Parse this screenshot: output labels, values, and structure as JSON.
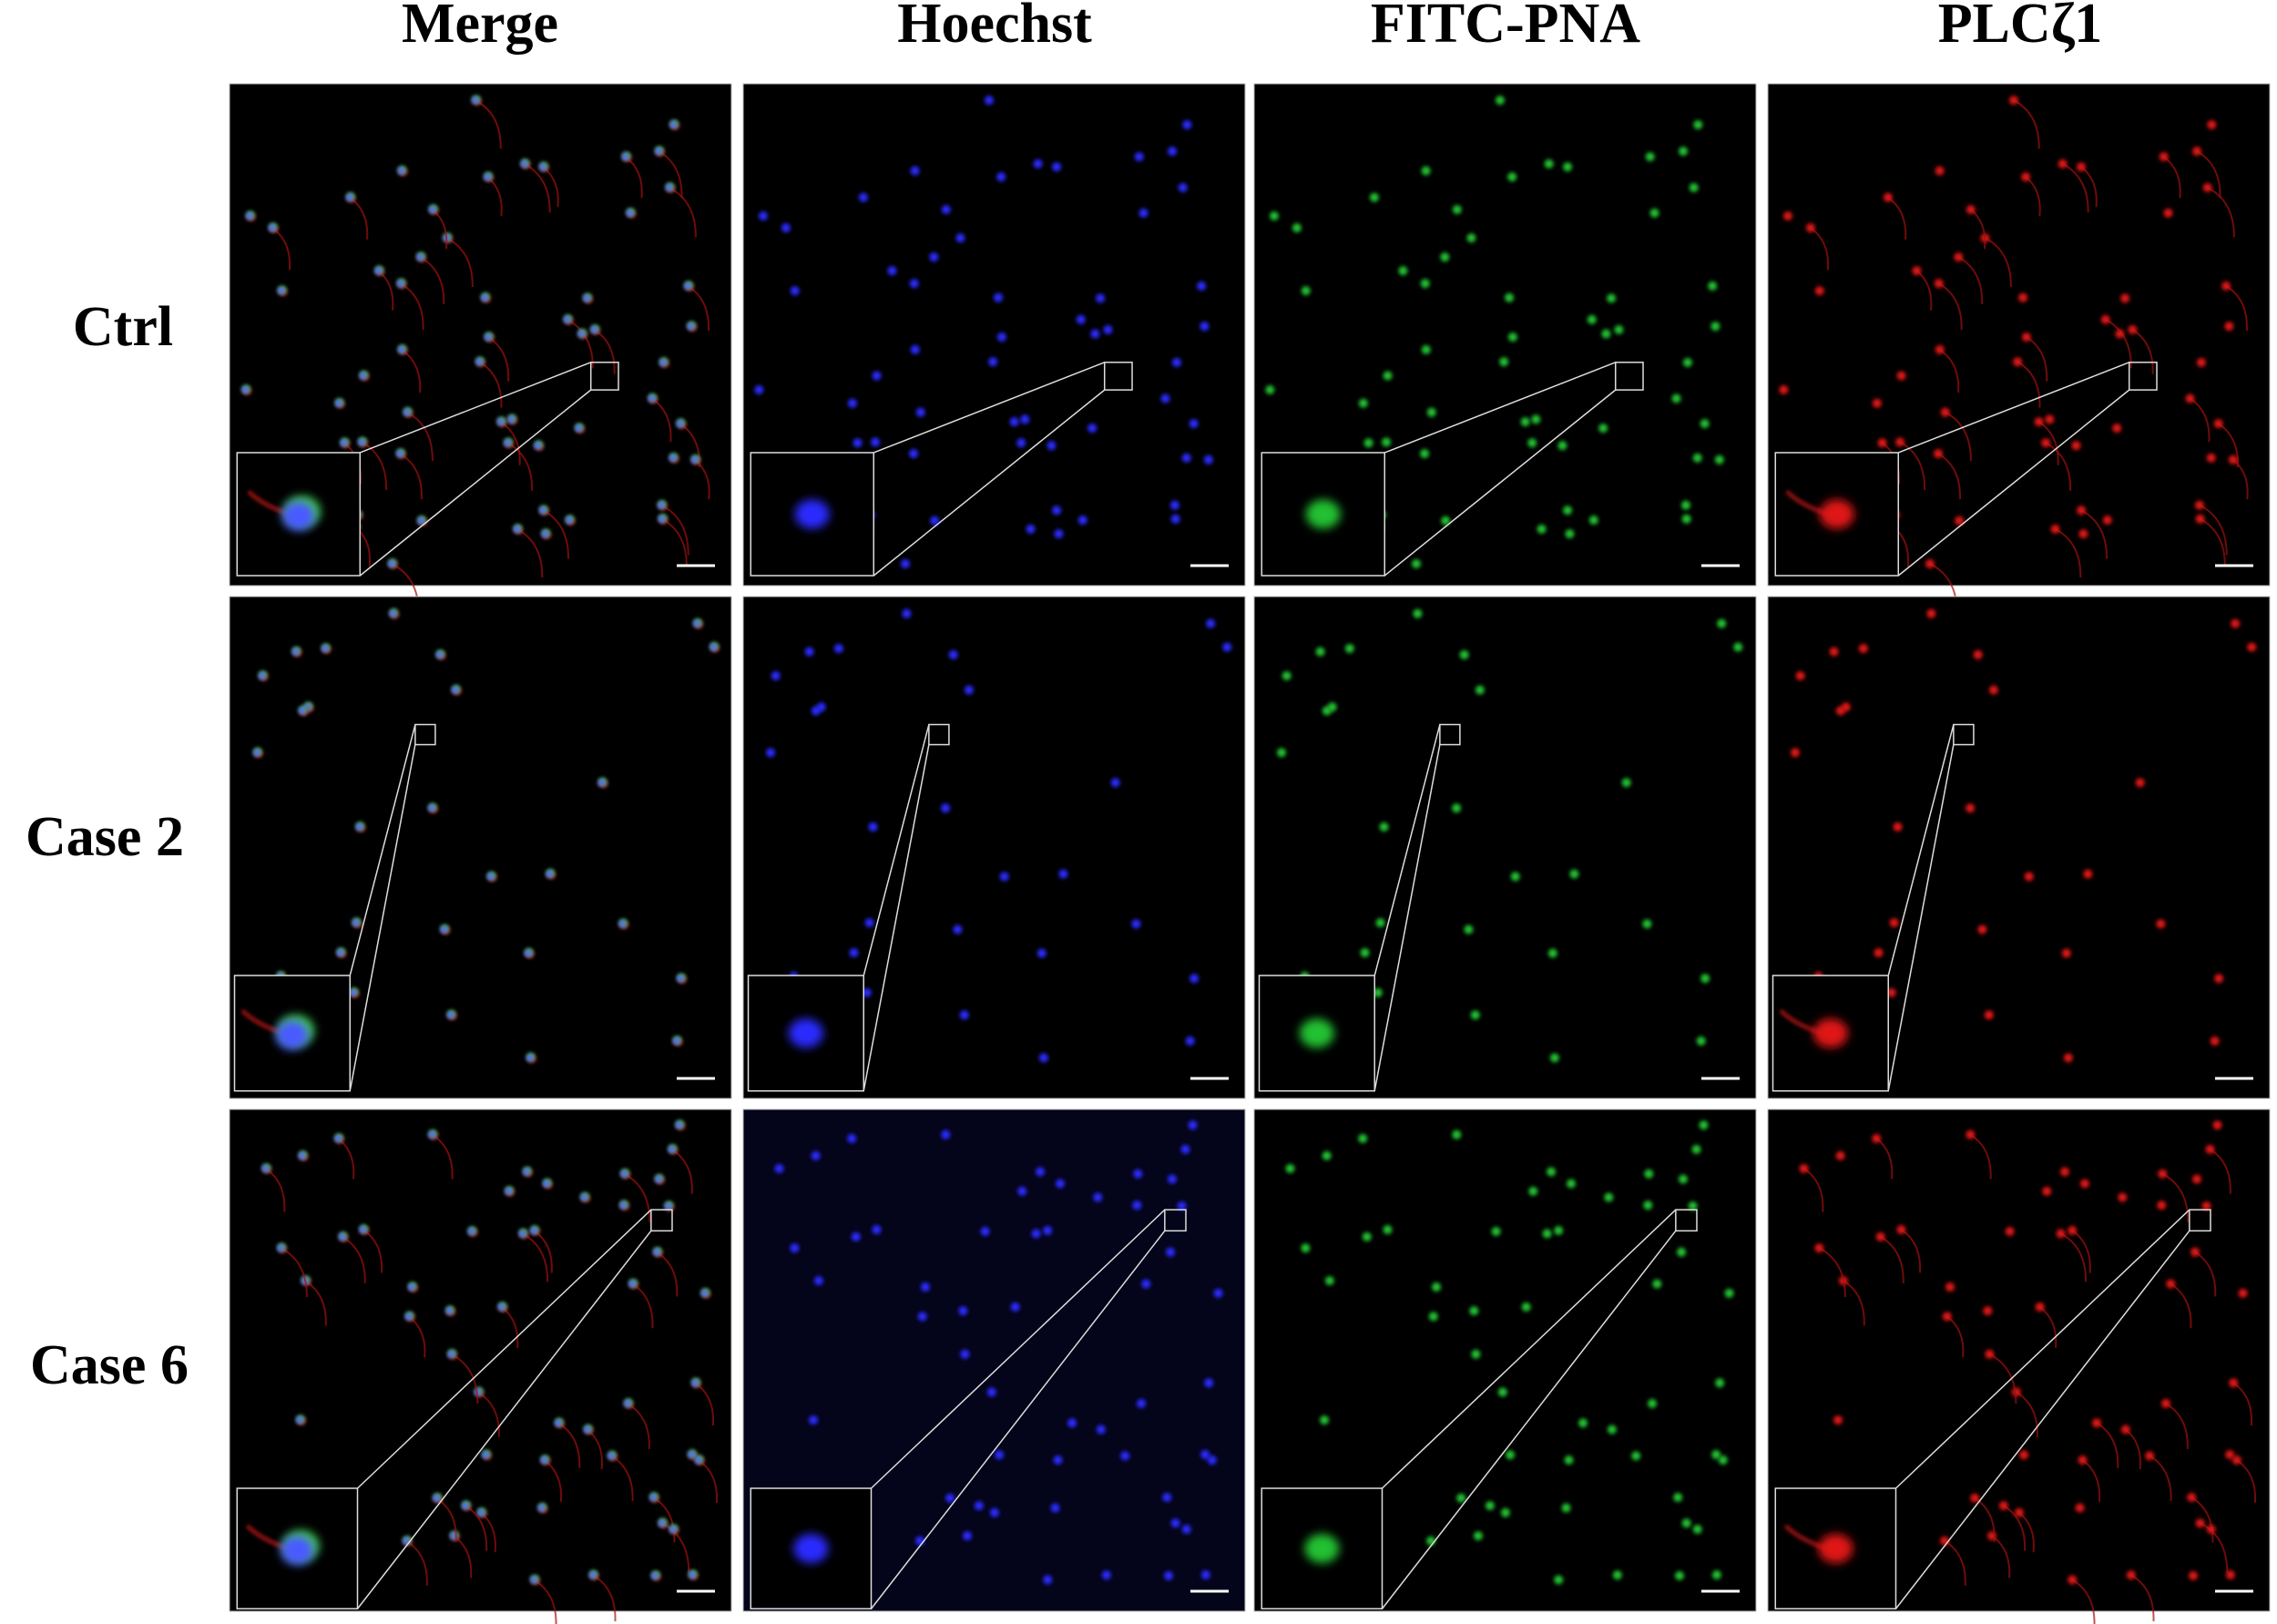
{
  "columns": [
    "Merge",
    "Hoechst",
    "FITC-PNA",
    "PLCζ1"
  ],
  "rows": [
    "Ctrl",
    "Case 2",
    "Case 6"
  ]
}
